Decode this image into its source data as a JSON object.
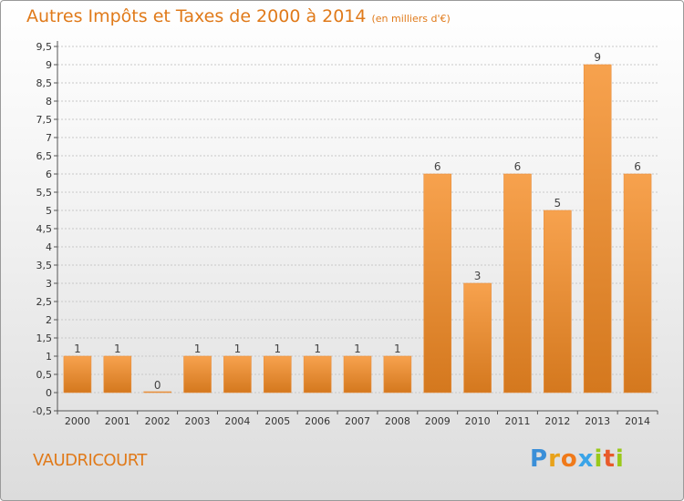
{
  "title": "Autres Impôts et Taxes de 2000 à 2014",
  "subtitle": "(en milliers d'€)",
  "commune": "VAUDRICOURT",
  "logo": {
    "p": "P",
    "r": "r",
    "o": "o",
    "x": "x",
    "i": "i",
    "t": "t",
    "i2": "i"
  },
  "colors": {
    "bar_top": "#f7a24e",
    "bar_bottom": "#d4781e",
    "title": "#e07a1a"
  },
  "chart_data": {
    "type": "bar",
    "categories": [
      "2000",
      "2001",
      "2002",
      "2003",
      "2004",
      "2005",
      "2006",
      "2007",
      "2008",
      "2009",
      "2010",
      "2011",
      "2012",
      "2013",
      "2014"
    ],
    "values": [
      1,
      1,
      0,
      1,
      1,
      1,
      1,
      1,
      1,
      6,
      3,
      6,
      5,
      9,
      6
    ],
    "ylim": [
      -0.5,
      9.5
    ],
    "yticks": [
      "-0,5",
      "0",
      "0,5",
      "1",
      "1,5",
      "2",
      "2,5",
      "3",
      "3,5",
      "4",
      "4,5",
      "5",
      "5,5",
      "6",
      "6,5",
      "7",
      "7,5",
      "8",
      "8,5",
      "9",
      "9,5"
    ],
    "ytick_values": [
      -0.5,
      0,
      0.5,
      1,
      1.5,
      2,
      2.5,
      3,
      3.5,
      4,
      4.5,
      5,
      5.5,
      6,
      6.5,
      7,
      7.5,
      8,
      8.5,
      9,
      9.5
    ],
    "grid": true,
    "xlabel": "",
    "ylabel": ""
  }
}
